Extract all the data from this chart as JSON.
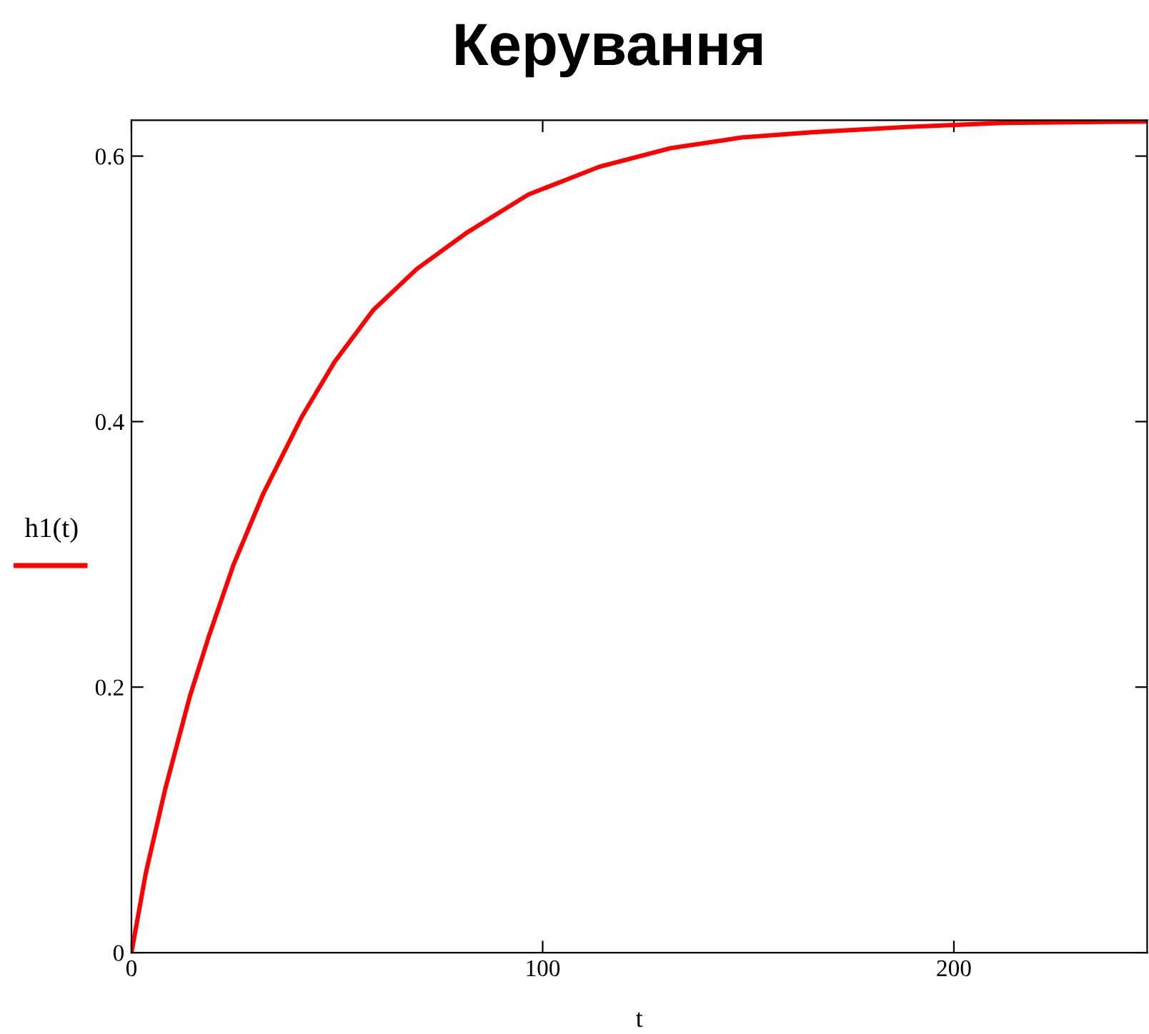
{
  "chart_data": {
    "type": "line",
    "title": "Керування",
    "xlabel": "t",
    "x": [
      0,
      3.5,
      8.2,
      14.2,
      18.8,
      24.8,
      32.1,
      41.5,
      49.4,
      58.8,
      69.4,
      81.4,
      96.5,
      113.8,
      131.1,
      148.4,
      165.7,
      188.8,
      211.8,
      246.4
    ],
    "series": [
      {
        "name": "h1(t)",
        "color": "#ff0000",
        "values": [
          0,
          0.06,
          0.123,
          0.193,
          0.238,
          0.292,
          0.346,
          0.404,
          0.445,
          0.484,
          0.515,
          0.542,
          0.571,
          0.592,
          0.606,
          0.614,
          0.618,
          0.622,
          0.625,
          0.626
        ]
      }
    ],
    "xlim": [
      0,
      247
    ],
    "ylim": [
      0,
      0.627
    ],
    "xticks": [
      0,
      100,
      200
    ],
    "yticks": [
      0,
      0.2,
      0.4,
      0.6
    ],
    "grid": false,
    "legend": "left",
    "marker": "none",
    "line_style": "solid"
  }
}
